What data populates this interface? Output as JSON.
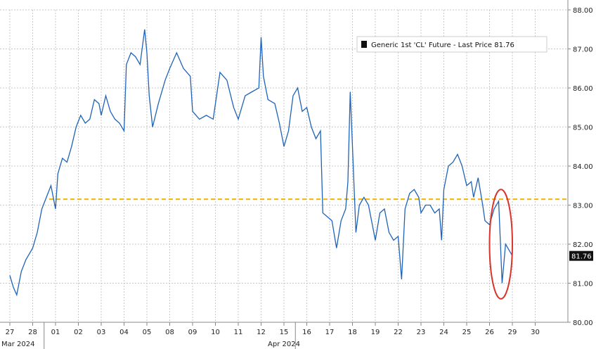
{
  "chart_data": {
    "type": "line",
    "title": "",
    "legend": {
      "label": "Generic 1st 'CL' Future - Last Price 81.76",
      "position": "top-right"
    },
    "last_price_tag": "81.76",
    "ylim": [
      80.0,
      88.0
    ],
    "y_ticks": [
      "80.00",
      "81.00",
      "82.00",
      "83.00",
      "84.00",
      "85.00",
      "86.00",
      "87.00",
      "88.00"
    ],
    "x_ticks": [
      "27",
      "28",
      "01",
      "02",
      "03",
      "04",
      "05",
      "08",
      "09",
      "10",
      "11",
      "12",
      "15",
      "16",
      "17",
      "18",
      "19",
      "22",
      "23",
      "24",
      "25",
      "26",
      "29",
      "30"
    ],
    "x_month_labels": [
      {
        "text": "Mar 2024",
        "at_index": 0
      },
      {
        "text": "Apr 2024",
        "at_index": 12
      }
    ],
    "grid": true,
    "reference_line": {
      "value": 83.15,
      "color": "#f2b600",
      "style": "dashed"
    },
    "series": [
      {
        "color": "#1e63b8",
        "points": [
          [
            0.0,
            81.2
          ],
          [
            0.15,
            80.9
          ],
          [
            0.3,
            80.7
          ],
          [
            0.5,
            81.3
          ],
          [
            0.7,
            81.6
          ],
          [
            0.9,
            81.8
          ],
          [
            1.0,
            81.9
          ],
          [
            1.2,
            82.3
          ],
          [
            1.4,
            82.9
          ],
          [
            1.6,
            83.2
          ],
          [
            1.8,
            83.5
          ],
          [
            2.0,
            82.9
          ],
          [
            2.1,
            83.8
          ],
          [
            2.3,
            84.2
          ],
          [
            2.5,
            84.1
          ],
          [
            2.7,
            84.5
          ],
          [
            2.9,
            85.0
          ],
          [
            3.1,
            85.3
          ],
          [
            3.3,
            85.1
          ],
          [
            3.5,
            85.2
          ],
          [
            3.7,
            85.7
          ],
          [
            3.9,
            85.6
          ],
          [
            4.0,
            85.3
          ],
          [
            4.2,
            85.8
          ],
          [
            4.4,
            85.4
          ],
          [
            4.6,
            85.2
          ],
          [
            4.8,
            85.1
          ],
          [
            5.0,
            84.9
          ],
          [
            5.1,
            86.6
          ],
          [
            5.3,
            86.9
          ],
          [
            5.5,
            86.8
          ],
          [
            5.7,
            86.6
          ],
          [
            5.9,
            87.5
          ],
          [
            6.0,
            86.9
          ],
          [
            6.1,
            85.8
          ],
          [
            6.25,
            85.0
          ],
          [
            6.5,
            85.6
          ],
          [
            6.8,
            86.2
          ],
          [
            7.0,
            86.5
          ],
          [
            7.3,
            86.9
          ],
          [
            7.6,
            86.5
          ],
          [
            7.9,
            86.3
          ],
          [
            8.0,
            85.4
          ],
          [
            8.3,
            85.2
          ],
          [
            8.6,
            85.3
          ],
          [
            8.9,
            85.2
          ],
          [
            9.2,
            86.4
          ],
          [
            9.5,
            86.2
          ],
          [
            9.8,
            85.5
          ],
          [
            10.0,
            85.2
          ],
          [
            10.3,
            85.8
          ],
          [
            10.6,
            85.9
          ],
          [
            10.9,
            86.0
          ],
          [
            11.0,
            87.3
          ],
          [
            11.1,
            86.3
          ],
          [
            11.3,
            85.7
          ],
          [
            11.6,
            85.6
          ],
          [
            11.8,
            85.1
          ],
          [
            12.0,
            84.5
          ],
          [
            12.2,
            84.9
          ],
          [
            12.4,
            85.8
          ],
          [
            12.6,
            86.0
          ],
          [
            12.8,
            85.4
          ],
          [
            13.0,
            85.5
          ],
          [
            13.2,
            85.0
          ],
          [
            13.4,
            84.7
          ],
          [
            13.6,
            84.9
          ],
          [
            13.7,
            82.8
          ],
          [
            13.9,
            82.7
          ],
          [
            14.1,
            82.6
          ],
          [
            14.3,
            81.9
          ],
          [
            14.5,
            82.6
          ],
          [
            14.7,
            82.9
          ],
          [
            14.8,
            83.6
          ],
          [
            14.9,
            85.9
          ],
          [
            15.0,
            84.5
          ],
          [
            15.15,
            82.3
          ],
          [
            15.3,
            83.0
          ],
          [
            15.5,
            83.2
          ],
          [
            15.7,
            83.0
          ],
          [
            15.9,
            82.4
          ],
          [
            16.0,
            82.1
          ],
          [
            16.2,
            82.8
          ],
          [
            16.4,
            82.9
          ],
          [
            16.6,
            82.3
          ],
          [
            16.8,
            82.1
          ],
          [
            17.0,
            82.2
          ],
          [
            17.15,
            81.1
          ],
          [
            17.3,
            82.9
          ],
          [
            17.5,
            83.3
          ],
          [
            17.7,
            83.4
          ],
          [
            17.9,
            83.2
          ],
          [
            18.0,
            82.8
          ],
          [
            18.2,
            83.0
          ],
          [
            18.4,
            83.0
          ],
          [
            18.6,
            82.8
          ],
          [
            18.8,
            82.9
          ],
          [
            18.9,
            82.1
          ],
          [
            19.0,
            83.4
          ],
          [
            19.2,
            84.0
          ],
          [
            19.4,
            84.1
          ],
          [
            19.6,
            84.3
          ],
          [
            19.8,
            84.0
          ],
          [
            20.0,
            83.5
          ],
          [
            20.2,
            83.6
          ],
          [
            20.3,
            83.2
          ],
          [
            20.5,
            83.7
          ],
          [
            20.7,
            83.0
          ],
          [
            20.8,
            82.6
          ],
          [
            21.0,
            82.5
          ],
          [
            21.2,
            82.9
          ],
          [
            21.4,
            83.1
          ],
          [
            21.55,
            81.0
          ],
          [
            21.7,
            82.0
          ],
          [
            21.9,
            81.8
          ],
          [
            22.0,
            81.7
          ]
        ]
      }
    ],
    "annotations": [
      {
        "type": "ellipse",
        "color": "#d9342b",
        "center": [
          21.5,
          82.0
        ],
        "radius_x_days": 0.5,
        "radius_y_price": 1.4
      }
    ]
  }
}
